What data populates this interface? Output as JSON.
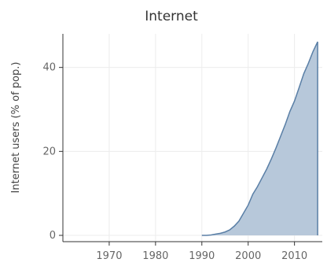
{
  "chart_data": {
    "type": "area",
    "title": "Internet",
    "ylabel": "Internet users (% of pop.)",
    "xlabel": "",
    "xlim": [
      1960,
      2016
    ],
    "ylim": [
      -1.5,
      48
    ],
    "x_ticks": [
      1970,
      1980,
      1990,
      2000,
      2010
    ],
    "y_ticks": [
      0,
      20,
      40
    ],
    "grid": true,
    "legend": "none",
    "series": [
      {
        "x": [
          1990,
          1991,
          1992,
          1993,
          1994,
          1995,
          1996,
          1997,
          1998,
          1999,
          2000,
          2001,
          2002,
          2003,
          2004,
          2005,
          2006,
          2007,
          2008,
          2009,
          2010,
          2011,
          2012,
          2013,
          2014,
          2015
        ],
        "values": [
          0.0,
          0.0,
          0.1,
          0.3,
          0.5,
          0.8,
          1.3,
          2.2,
          3.4,
          5.3,
          7.2,
          9.8,
          11.6,
          13.7,
          15.8,
          18.2,
          20.8,
          23.6,
          26.4,
          29.5,
          32.0,
          35.2,
          38.5,
          41.0,
          43.8,
          46.1
        ]
      }
    ],
    "colors": {
      "fill": "#b7c8da",
      "line": "#5a7fa6",
      "axis": "#333333",
      "grid": "#ececec",
      "tick_text": "#666666"
    }
  }
}
